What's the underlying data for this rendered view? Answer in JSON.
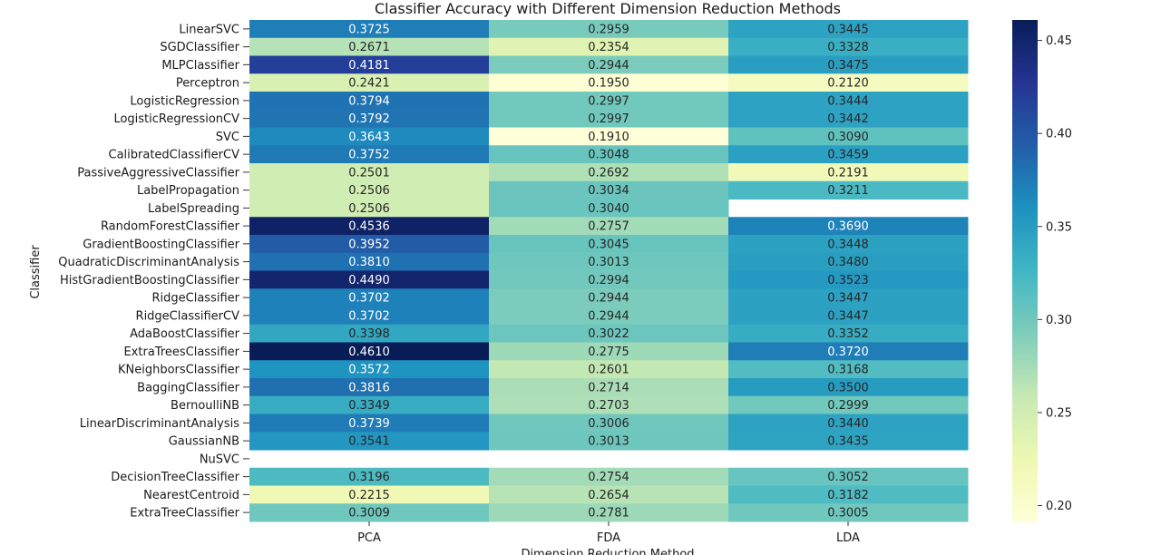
{
  "chart_data": {
    "type": "heatmap",
    "title": "Classifier Accuracy with Different Dimension Reduction Methods",
    "xlabel": "Dimension Reduction Method",
    "ylabel": "Classifier",
    "columns": [
      "PCA",
      "FDA",
      "LDA"
    ],
    "rows": [
      "LinearSVC",
      "SGDClassifier",
      "MLPClassifier",
      "Perceptron",
      "LogisticRegression",
      "LogisticRegressionCV",
      "SVC",
      "CalibratedClassifierCV",
      "PassiveAggressiveClassifier",
      "LabelPropagation",
      "LabelSpreading",
      "RandomForestClassifier",
      "GradientBoostingClassifier",
      "QuadraticDiscriminantAnalysis",
      "HistGradientBoostingClassifier",
      "RidgeClassifier",
      "RidgeClassifierCV",
      "AdaBoostClassifier",
      "ExtraTreesClassifier",
      "KNeighborsClassifier",
      "BaggingClassifier",
      "BernoulliNB",
      "LinearDiscriminantAnalysis",
      "GaussianNB",
      "NuSVC",
      "DecisionTreeClassifier",
      "NearestCentroid",
      "ExtraTreeClassifier"
    ],
    "values": [
      [
        0.3725,
        0.2959,
        0.3445
      ],
      [
        0.2671,
        0.2354,
        0.3328
      ],
      [
        0.4181,
        0.2944,
        0.3475
      ],
      [
        0.2421,
        0.195,
        0.212
      ],
      [
        0.3794,
        0.2997,
        0.3444
      ],
      [
        0.3792,
        0.2997,
        0.3442
      ],
      [
        0.3643,
        0.191,
        0.309
      ],
      [
        0.3752,
        0.3048,
        0.3459
      ],
      [
        0.2501,
        0.2692,
        0.2191
      ],
      [
        0.2506,
        0.3034,
        0.3211
      ],
      [
        0.2506,
        0.304,
        null
      ],
      [
        0.4536,
        0.2757,
        0.369
      ],
      [
        0.3952,
        0.3045,
        0.3448
      ],
      [
        0.381,
        0.3013,
        0.348
      ],
      [
        0.449,
        0.2994,
        0.3523
      ],
      [
        0.3702,
        0.2944,
        0.3447
      ],
      [
        0.3702,
        0.2944,
        0.3447
      ],
      [
        0.3398,
        0.3022,
        0.3352
      ],
      [
        0.461,
        0.2775,
        0.372
      ],
      [
        0.3572,
        0.2601,
        0.3168
      ],
      [
        0.3816,
        0.2714,
        0.35
      ],
      [
        0.3349,
        0.2703,
        0.2999
      ],
      [
        0.3739,
        0.3006,
        0.344
      ],
      [
        0.3541,
        0.3013,
        0.3435
      ],
      [
        null,
        null,
        null
      ],
      [
        0.3196,
        0.2754,
        0.3052
      ],
      [
        0.2215,
        0.2654,
        0.3182
      ],
      [
        0.3009,
        0.2781,
        0.3005
      ]
    ],
    "value_format": "4 decimals",
    "colormap": "YlGnBu",
    "colorbar": {
      "range": [
        0.191,
        0.461
      ],
      "ticks": [
        0.2,
        0.25,
        0.3,
        0.35,
        0.4,
        0.45
      ],
      "tick_labels": [
        "0.20",
        "0.25",
        "0.30",
        "0.35",
        "0.40",
        "0.45"
      ]
    },
    "missing_cells": "blank (white)",
    "grid": false
  }
}
